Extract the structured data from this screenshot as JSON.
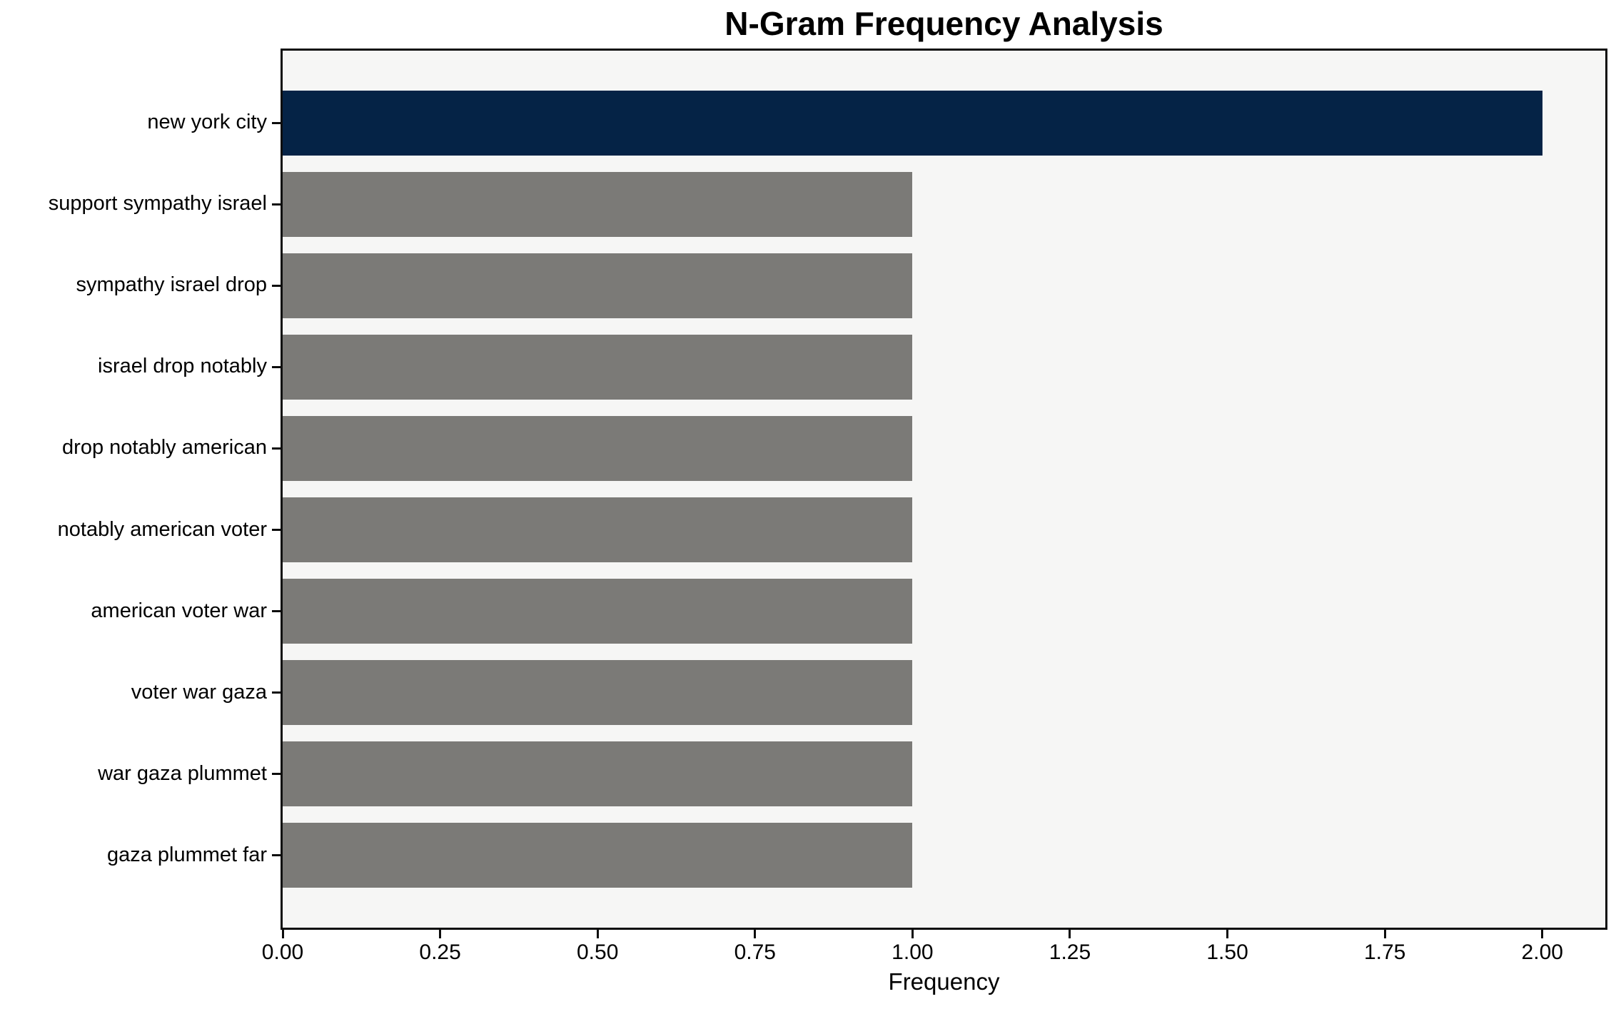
{
  "chart_data": {
    "type": "bar",
    "orientation": "horizontal",
    "title": "N-Gram Frequency Analysis",
    "xlabel": "Frequency",
    "ylabel": "",
    "categories": [
      "new york city",
      "support sympathy israel",
      "sympathy israel drop",
      "israel drop notably",
      "drop notably american",
      "notably american voter",
      "american voter war",
      "voter war gaza",
      "war gaza plummet",
      "gaza plummet far"
    ],
    "values": [
      2,
      1,
      1,
      1,
      1,
      1,
      1,
      1,
      1,
      1
    ],
    "bar_colors": [
      "#052346",
      "#7b7a77",
      "#7b7a77",
      "#7b7a77",
      "#7b7a77",
      "#7b7a77",
      "#7b7a77",
      "#7b7a77",
      "#7b7a77",
      "#7b7a77"
    ],
    "xlim": [
      0,
      2.1
    ],
    "xticks": [
      "0.00",
      "0.25",
      "0.50",
      "0.75",
      "1.00",
      "1.25",
      "1.50",
      "1.75",
      "2.00"
    ],
    "xtick_values": [
      0,
      0.25,
      0.5,
      0.75,
      1.0,
      1.25,
      1.5,
      1.75,
      2.0
    ],
    "grid": false,
    "legend": null,
    "colors": {
      "highlight_bar": "#052346",
      "default_bar": "#7b7a77",
      "plot_background": "#f6f6f5",
      "figure_background": "#ffffff",
      "axis": "#0d0d0d",
      "text": "#000000"
    }
  }
}
